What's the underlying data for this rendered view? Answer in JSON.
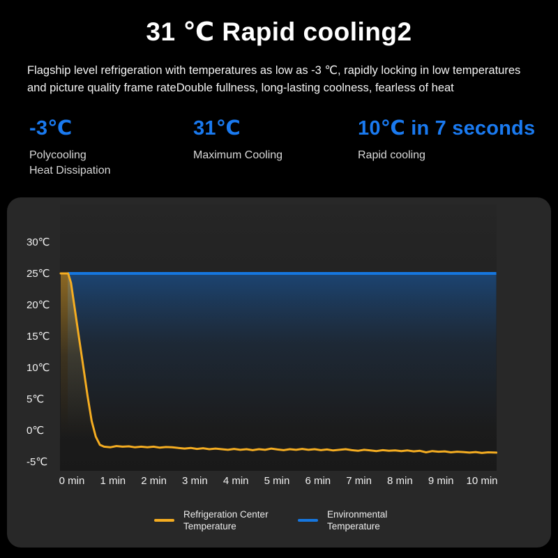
{
  "header": {
    "title": "31 ℃ Rapid cooling2",
    "subtitle_line1": "Flagship level refrigeration with temperatures as low as -3 ℃, rapidly locking in low temperatures",
    "subtitle_line2": "and picture quality frame rateDouble fullness, long-lasting coolness, fearless of heat"
  },
  "stats": [
    {
      "value": "-3℃",
      "label": "Polycooling\nHeat Dissipation"
    },
    {
      "value": "31℃",
      "label": "Maximum Cooling"
    },
    {
      "value": "10℃ in 7 seconds",
      "label": "Rapid cooling"
    }
  ],
  "colors": {
    "page_bg": "#000000",
    "card_bg": "#282828",
    "accent_blue": "#1A7AF0",
    "line_blue": "#1677E0",
    "line_orange": "#F5AD21",
    "axis_text": "#f2f2f2"
  },
  "chart_data": {
    "type": "line",
    "title": "",
    "xlabel": "",
    "ylabel": "",
    "x_unit": "min",
    "y_unit": "℃",
    "x_ticks": [
      "0 min",
      "1 min",
      "2 min",
      "3 min",
      "4 min",
      "5 min",
      "6 min",
      "7 min",
      "8 min",
      "9 min",
      "10 min"
    ],
    "x_tick_values": [
      0,
      1,
      2,
      3,
      4,
      5,
      6,
      7,
      8,
      9,
      10
    ],
    "y_ticks": [
      "30℃",
      "25℃",
      "20℃",
      "15℃",
      "10℃",
      "5℃",
      "0℃",
      "-5℃"
    ],
    "y_tick_values": [
      30,
      25,
      20,
      15,
      10,
      5,
      0,
      -5
    ],
    "ylim": [
      -6.5,
      36
    ],
    "xlim": [
      0,
      10.55
    ],
    "grid": false,
    "legend_position": "bottom",
    "series": [
      {
        "name": "Refrigeration Center Temperature",
        "color": "#F5AD21",
        "area_fill": true,
        "points": [
          [
            0,
            25
          ],
          [
            0.18,
            25
          ],
          [
            0.25,
            23.5
          ],
          [
            0.35,
            19
          ],
          [
            0.45,
            14.5
          ],
          [
            0.55,
            10
          ],
          [
            0.65,
            5.5
          ],
          [
            0.75,
            1.5
          ],
          [
            0.85,
            -1
          ],
          [
            0.95,
            -2.3
          ],
          [
            1.05,
            -2.6
          ],
          [
            1.2,
            -2.7
          ],
          [
            1.35,
            -2.5
          ],
          [
            1.5,
            -2.6
          ],
          [
            1.65,
            -2.55
          ],
          [
            1.8,
            -2.7
          ],
          [
            1.95,
            -2.6
          ],
          [
            2.1,
            -2.7
          ],
          [
            2.25,
            -2.6
          ],
          [
            2.4,
            -2.75
          ],
          [
            2.55,
            -2.65
          ],
          [
            2.7,
            -2.7
          ],
          [
            2.85,
            -2.8
          ],
          [
            3.0,
            -2.9
          ],
          [
            3.15,
            -2.8
          ],
          [
            3.3,
            -2.95
          ],
          [
            3.45,
            -2.85
          ],
          [
            3.6,
            -3.0
          ],
          [
            3.75,
            -2.9
          ],
          [
            3.9,
            -3.0
          ],
          [
            4.05,
            -3.1
          ],
          [
            4.2,
            -2.95
          ],
          [
            4.35,
            -3.1
          ],
          [
            4.5,
            -3.0
          ],
          [
            4.65,
            -3.15
          ],
          [
            4.8,
            -3.0
          ],
          [
            4.95,
            -3.1
          ],
          [
            5.1,
            -2.9
          ],
          [
            5.25,
            -3.05
          ],
          [
            5.4,
            -3.15
          ],
          [
            5.55,
            -3.0
          ],
          [
            5.7,
            -3.1
          ],
          [
            5.85,
            -2.95
          ],
          [
            6.0,
            -3.1
          ],
          [
            6.15,
            -3.0
          ],
          [
            6.3,
            -3.15
          ],
          [
            6.45,
            -3.05
          ],
          [
            6.6,
            -3.2
          ],
          [
            6.75,
            -3.1
          ],
          [
            6.9,
            -3.0
          ],
          [
            7.05,
            -3.15
          ],
          [
            7.2,
            -3.25
          ],
          [
            7.35,
            -3.1
          ],
          [
            7.5,
            -3.2
          ],
          [
            7.65,
            -3.3
          ],
          [
            7.8,
            -3.15
          ],
          [
            7.95,
            -3.25
          ],
          [
            8.1,
            -3.2
          ],
          [
            8.25,
            -3.3
          ],
          [
            8.4,
            -3.2
          ],
          [
            8.55,
            -3.35
          ],
          [
            8.7,
            -3.25
          ],
          [
            8.85,
            -3.5
          ],
          [
            9.0,
            -3.3
          ],
          [
            9.15,
            -3.4
          ],
          [
            9.3,
            -3.35
          ],
          [
            9.45,
            -3.5
          ],
          [
            9.6,
            -3.4
          ],
          [
            9.75,
            -3.45
          ],
          [
            9.9,
            -3.55
          ],
          [
            10.05,
            -3.45
          ],
          [
            10.2,
            -3.6
          ],
          [
            10.35,
            -3.5
          ],
          [
            10.55,
            -3.55
          ]
        ]
      },
      {
        "name": "Environmental Temperature",
        "color": "#1677E0",
        "area_fill": true,
        "points": [
          [
            0.17,
            25
          ],
          [
            10.55,
            25
          ]
        ]
      }
    ]
  }
}
